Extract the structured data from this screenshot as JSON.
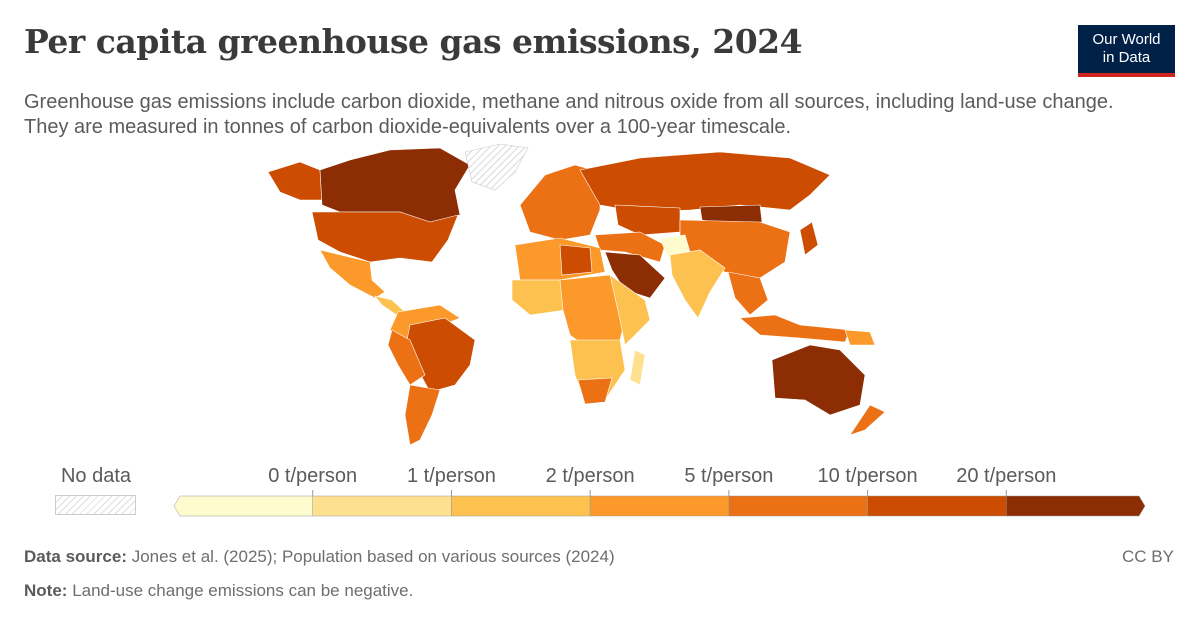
{
  "title": "Per capita greenhouse gas emissions, 2024",
  "subtitle": "Greenhouse gas emissions include carbon dioxide, methane and nitrous oxide from all sources, including land-use change. They are measured in tonnes of carbon dioxide-equivalents over a 100-year timescale.",
  "logo": {
    "line1": "Our World",
    "line2": "in Data",
    "bg": "#002147",
    "accent": "#ce261e"
  },
  "legend": {
    "no_data_label": "No data",
    "ticks": [
      "0 t/person",
      "1 t/person",
      "2 t/person",
      "5 t/person",
      "10 t/person",
      "20 t/person"
    ],
    "bins": [
      {
        "range": "< 0 t/person",
        "color": "#fefccf"
      },
      {
        "range": "0–1 t/person",
        "color": "#fde18e"
      },
      {
        "range": "1–2 t/person",
        "color": "#fdc14f"
      },
      {
        "range": "2–5 t/person",
        "color": "#fb9a2a"
      },
      {
        "range": "5–10 t/person",
        "color": "#ec7014"
      },
      {
        "range": "10–20 t/person",
        "color": "#cc4c02"
      },
      {
        "range": "> 20 t/person",
        "color": "#8c2d04"
      }
    ]
  },
  "footer": {
    "source_label": "Data source:",
    "source_text": "Jones et al. (2025); Population based on various sources (2024)",
    "note_label": "Note:",
    "note_text": "Land-use change emissions can be negative.",
    "license": "CC BY"
  }
}
